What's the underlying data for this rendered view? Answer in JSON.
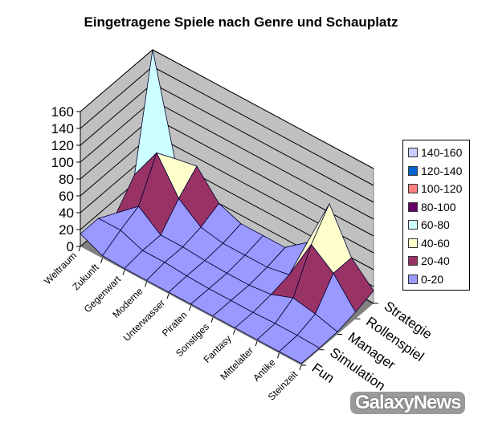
{
  "chart_data": {
    "type": "surface",
    "title": "Eingetragene Spiele nach Genre und Schauplatz",
    "categories": [
      "Weltraum",
      "Zukunft",
      "Gegenwart",
      "Moderne",
      "Unterwasser",
      "Piraten",
      "Sonstiges",
      "Fantasy",
      "Mittelalter",
      "Antike",
      "Steinzeit"
    ],
    "series": [
      {
        "name": "Fun",
        "values": [
          15,
          3,
          2,
          2,
          2,
          2,
          2,
          2,
          2,
          2,
          2
        ]
      },
      {
        "name": "Simulation",
        "values": [
          15,
          15,
          5,
          5,
          3,
          2,
          2,
          2,
          3,
          3,
          2
        ]
      },
      {
        "name": "Manager",
        "values": [
          3,
          25,
          5,
          5,
          3,
          2,
          2,
          5,
          15,
          10,
          3
        ]
      },
      {
        "name": "Rollenspiel",
        "values": [
          30,
          70,
          30,
          10,
          5,
          5,
          5,
          10,
          60,
          40,
          8
        ]
      },
      {
        "name": "Strategie",
        "values": [
          160,
          45,
          50,
          20,
          10,
          10,
          10,
          30,
          90,
          40,
          15
        ]
      }
    ],
    "zlim": [
      0,
      160
    ],
    "zticks": [
      "0",
      "20",
      "40",
      "60",
      "80",
      "100",
      "120",
      "140",
      "160"
    ],
    "legend_position": "right",
    "bands": [
      {
        "label": "140-160",
        "color": "#ccccff"
      },
      {
        "label": "120-140",
        "color": "#0066cc"
      },
      {
        "label": "100-120",
        "color": "#ff8080"
      },
      {
        "label": "80-100",
        "color": "#660066"
      },
      {
        "label": "60-80",
        "color": "#ccffff"
      },
      {
        "label": "40-60",
        "color": "#ffffcc"
      },
      {
        "label": "20-40",
        "color": "#993366"
      },
      {
        "label": "0-20",
        "color": "#9999ff"
      }
    ]
  },
  "watermark": "GalaxyNews"
}
